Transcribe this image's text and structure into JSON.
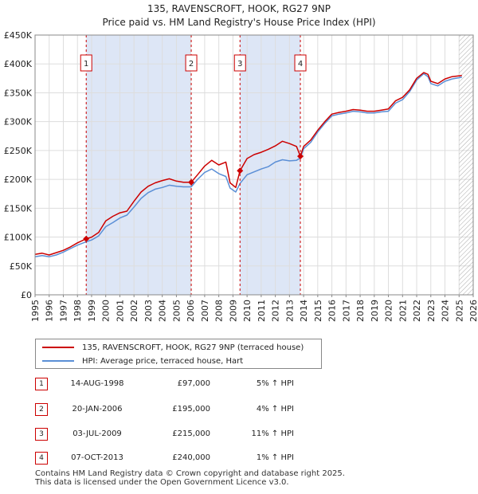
{
  "header": {
    "title_line1": "135, RAVENSCROFT, HOOK, RG27 9NP",
    "title_line2": "Price paid vs. HM Land Registry's House Price Index (HPI)"
  },
  "colors": {
    "property": "#cc0000",
    "hpi": "#5b8fd6",
    "shade": "#dde6f6",
    "marker_border": "#cc0000",
    "future_hatch": "#aaaaaa"
  },
  "chart_data": {
    "type": "line",
    "title": "Price paid vs. HM Land Registry's House Price Index (HPI)",
    "xlabel": "",
    "ylabel": "",
    "xlim": [
      1995,
      2026
    ],
    "ylim": [
      0,
      450000
    ],
    "y_tick_values": [
      0,
      50000,
      100000,
      150000,
      200000,
      250000,
      300000,
      350000,
      400000,
      450000
    ],
    "y_tick_labels": [
      "£0",
      "£50K",
      "£100K",
      "£150K",
      "£200K",
      "£250K",
      "£300K",
      "£350K",
      "£400K",
      "£450K"
    ],
    "x_tick_values": [
      1995,
      1996,
      1997,
      1998,
      1999,
      2000,
      2001,
      2002,
      2003,
      2004,
      2005,
      2006,
      2007,
      2008,
      2009,
      2010,
      2011,
      2012,
      2013,
      2014,
      2015,
      2016,
      2017,
      2018,
      2019,
      2020,
      2021,
      2022,
      2023,
      2024,
      2025,
      2026
    ],
    "x_tick_labels": [
      "1995",
      "1996",
      "1997",
      "1998",
      "1999",
      "2000",
      "2001",
      "2002",
      "2003",
      "2004",
      "2005",
      "2006",
      "2007",
      "2008",
      "2009",
      "2010",
      "2011",
      "2012",
      "2013",
      "2014",
      "2015",
      "2016",
      "2017",
      "2018",
      "2019",
      "2020",
      "2021",
      "2022",
      "2023",
      "2024",
      "2025",
      "2026"
    ],
    "grid": true,
    "shaded_ranges": [
      [
        1998.62,
        2006.05
      ],
      [
        2009.5,
        2013.77
      ]
    ],
    "future_start": 2025.0,
    "series": [
      {
        "name": "135, RAVENSCROFT, HOOK, RG27 9NP (terraced house)",
        "x": [
          1995,
          1995.5,
          1996,
          1996.5,
          1997,
          1997.5,
          1998,
          1998.62,
          1999,
          1999.5,
          2000,
          2000.5,
          2001,
          2001.5,
          2002,
          2002.5,
          2003,
          2003.5,
          2004,
          2004.5,
          2005,
          2005.5,
          2006.05,
          2006.5,
          2007,
          2007.5,
          2008,
          2008.5,
          2008.8,
          2009.2,
          2009.5,
          2010,
          2010.5,
          2011,
          2011.5,
          2012,
          2012.5,
          2013,
          2013.5,
          2013.77,
          2014,
          2014.5,
          2015,
          2015.5,
          2016,
          2016.5,
          2017,
          2017.5,
          2018,
          2018.5,
          2019,
          2019.5,
          2020,
          2020.5,
          2021,
          2021.5,
          2022,
          2022.5,
          2022.8,
          2023,
          2023.5,
          2024,
          2024.5,
          2025.2
        ],
        "values": [
          70000,
          72000,
          69000,
          73000,
          77000,
          83000,
          90000,
          97000,
          100000,
          108000,
          128000,
          136000,
          142000,
          145000,
          162000,
          178000,
          188000,
          194000,
          198000,
          201000,
          197000,
          195000,
          195000,
          208000,
          223000,
          233000,
          225000,
          230000,
          194000,
          186000,
          215000,
          236000,
          243000,
          247000,
          252000,
          258000,
          266000,
          262000,
          257000,
          240000,
          257000,
          268000,
          285000,
          300000,
          313000,
          316000,
          318000,
          321000,
          320000,
          318000,
          318000,
          320000,
          322000,
          336000,
          342000,
          355000,
          375000,
          385000,
          382000,
          370000,
          366000,
          374000,
          378000,
          380000
        ]
      },
      {
        "name": "HPI: Average price, terraced house, Hart",
        "x": [
          1995,
          1995.5,
          1996,
          1996.5,
          1997,
          1997.5,
          1998,
          1998.62,
          1999,
          1999.5,
          2000,
          2000.5,
          2001,
          2001.5,
          2002,
          2002.5,
          2003,
          2003.5,
          2004,
          2004.5,
          2005,
          2005.5,
          2006.05,
          2006.5,
          2007,
          2007.5,
          2008,
          2008.5,
          2008.8,
          2009.2,
          2009.5,
          2010,
          2010.5,
          2011,
          2011.5,
          2012,
          2012.5,
          2013,
          2013.5,
          2013.77,
          2014,
          2014.5,
          2015,
          2015.5,
          2016,
          2016.5,
          2017,
          2017.5,
          2018,
          2018.5,
          2019,
          2019.5,
          2020,
          2020.5,
          2021,
          2021.5,
          2022,
          2022.5,
          2022.8,
          2023,
          2023.5,
          2024,
          2024.5,
          2025.2
        ],
        "values": [
          66000,
          68000,
          66000,
          69000,
          74000,
          80000,
          86000,
          92000,
          95000,
          102000,
          118000,
          125000,
          133000,
          138000,
          152000,
          167000,
          177000,
          183000,
          186000,
          190000,
          188000,
          187000,
          187000,
          200000,
          212000,
          218000,
          210000,
          205000,
          185000,
          178000,
          193000,
          208000,
          213000,
          218000,
          222000,
          230000,
          234000,
          232000,
          233000,
          237000,
          253000,
          264000,
          282000,
          297000,
          310000,
          313000,
          315000,
          318000,
          317000,
          315000,
          315000,
          317000,
          318000,
          332000,
          338000,
          352000,
          372000,
          383000,
          378000,
          366000,
          362000,
          370000,
          374000,
          377000
        ]
      }
    ],
    "sale_markers": [
      {
        "label": "1",
        "x": 1998.62,
        "value": 97000
      },
      {
        "label": "2",
        "x": 2006.05,
        "value": 195000
      },
      {
        "label": "3",
        "x": 2009.5,
        "value": 215000
      },
      {
        "label": "4",
        "x": 2013.77,
        "value": 240000
      }
    ]
  },
  "legend": {
    "items": [
      {
        "label": "135, RAVENSCROFT, HOOK, RG27 9NP (terraced house)"
      },
      {
        "label": "HPI: Average price, terraced house, Hart"
      }
    ]
  },
  "sales": [
    {
      "num": "1",
      "date": "14-AUG-1998",
      "price": "£97,000",
      "hpi": "5% ↑ HPI"
    },
    {
      "num": "2",
      "date": "20-JAN-2006",
      "price": "£195,000",
      "hpi": "4% ↑ HPI"
    },
    {
      "num": "3",
      "date": "03-JUL-2009",
      "price": "£215,000",
      "hpi": "11% ↑ HPI"
    },
    {
      "num": "4",
      "date": "07-OCT-2013",
      "price": "£240,000",
      "hpi": "1% ↑ HPI"
    }
  ],
  "footer": {
    "line1": "Contains HM Land Registry data © Crown copyright and database right 2025.",
    "line2": "This data is licensed under the Open Government Licence v3.0."
  }
}
